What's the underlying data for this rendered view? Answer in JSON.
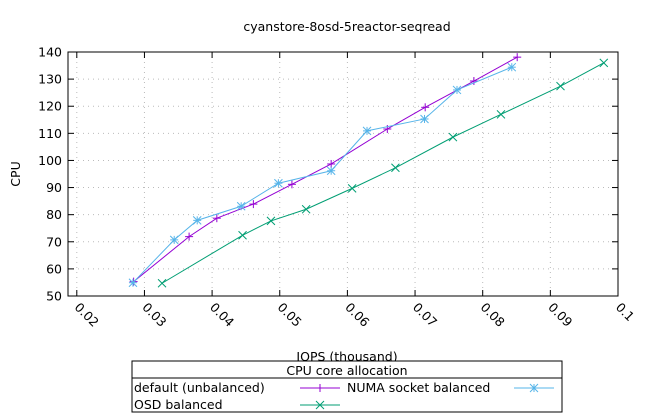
{
  "chart_data": {
    "type": "line",
    "title": "cyanstore-8osd-5reactor-seqread",
    "xlabel": "IOPS (thousand)",
    "ylabel": "CPU",
    "xlim": [
      0.0187,
      0.1
    ],
    "ylim": [
      50,
      140
    ],
    "xticks": [
      0.02,
      0.03,
      0.04,
      0.05,
      0.06,
      0.07,
      0.08,
      0.09,
      0.1
    ],
    "xtick_labels": [
      "0.02",
      "0.03",
      "0.04",
      "0.05",
      "0.06",
      "0.07",
      "0.08",
      "0.09",
      "0.1"
    ],
    "yticks": [
      50,
      60,
      70,
      80,
      90,
      100,
      110,
      120,
      130,
      140
    ],
    "ytick_labels": [
      "50",
      "60",
      "70",
      "80",
      "90",
      "100",
      "110",
      "120",
      "130",
      "140"
    ],
    "grid": true,
    "legend": {
      "title": "CPU core allocation",
      "placement": "bottom-center"
    },
    "series": [
      {
        "name": "default (unbalanced)",
        "color": "#9400d3",
        "marker": "plus",
        "x": [
          0.0284,
          0.0366,
          0.0407,
          0.0461,
          0.0518,
          0.0576,
          0.0659,
          0.0715,
          0.0787,
          0.0851
        ],
        "y": [
          55.3,
          71.9,
          78.7,
          83.9,
          91.2,
          98.7,
          111.6,
          119.6,
          129.3,
          138.1
        ]
      },
      {
        "name": "NUMA socket balanced",
        "color": "#56b4e9",
        "marker": "star",
        "x": [
          0.0283,
          0.0344,
          0.0378,
          0.0443,
          0.0498,
          0.0576,
          0.0629,
          0.0714,
          0.0762,
          0.0843
        ],
        "y": [
          54.9,
          70.7,
          77.9,
          83.1,
          91.6,
          96.2,
          110.9,
          115.3,
          126.0,
          134.4
        ]
      },
      {
        "name": "OSD balanced",
        "color": "#009e73",
        "marker": "cross",
        "x": [
          0.0326,
          0.0445,
          0.0487,
          0.0539,
          0.0607,
          0.0671,
          0.0756,
          0.0827,
          0.0915,
          0.0979
        ],
        "y": [
          54.7,
          72.4,
          77.7,
          82.0,
          89.7,
          97.3,
          108.6,
          117.0,
          127.4,
          136.0
        ]
      }
    ]
  }
}
